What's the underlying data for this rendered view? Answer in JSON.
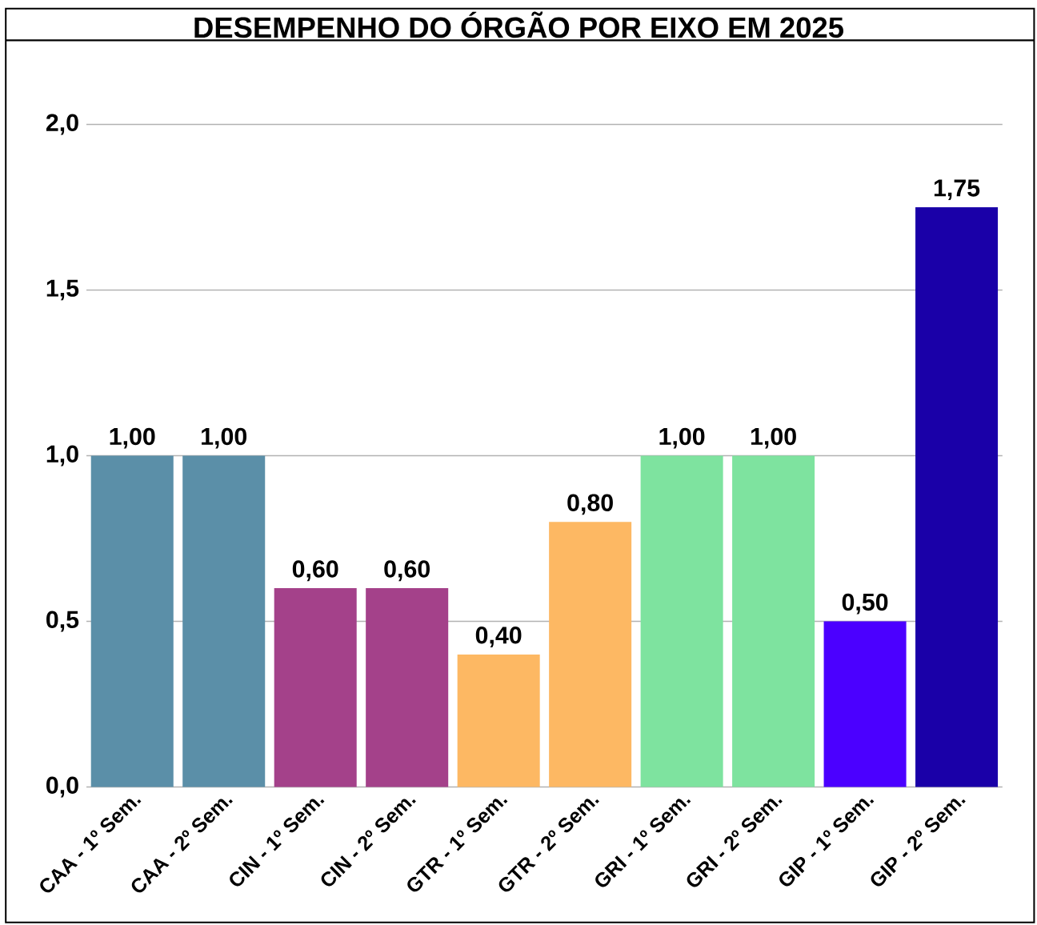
{
  "chart_data": {
    "type": "bar",
    "title": "DESEMPENHO DO ÓRGÃO POR EIXO EM 2025",
    "categories": [
      "CAA - 1º Sem.",
      "CAA - 2º Sem.",
      "CIN - 1º Sem.",
      "CIN - 2º Sem.",
      "GTR - 1º Sem.",
      "GTR - 2º Sem.",
      "GRI - 1º Sem.",
      "GRI - 2º Sem.",
      "GIP - 1º Sem.",
      "GIP - 2º Sem."
    ],
    "values": [
      1.0,
      1.0,
      0.6,
      0.6,
      0.4,
      0.8,
      1.0,
      1.0,
      0.5,
      1.75
    ],
    "value_labels": [
      "1,00",
      "1,00",
      "0,60",
      "0,60",
      "0,40",
      "0,80",
      "1,00",
      "1,00",
      "0,50",
      "1,75"
    ],
    "colors": [
      "#5b8fa8",
      "#5b8fa8",
      "#a4418a",
      "#a4418a",
      "#fdb863",
      "#fdb863",
      "#7ee39f",
      "#7ee39f",
      "#4b00ff",
      "#1a00a8"
    ],
    "ylim": [
      0,
      2.0
    ],
    "yticks": [
      {
        "value": 0,
        "label": "0,0"
      },
      {
        "value": 0.5,
        "label": "0,5"
      },
      {
        "value": 1.0,
        "label": "1,0"
      },
      {
        "value": 1.5,
        "label": "1,5"
      },
      {
        "value": 2.0,
        "label": "2,0"
      }
    ],
    "grid": "y"
  }
}
